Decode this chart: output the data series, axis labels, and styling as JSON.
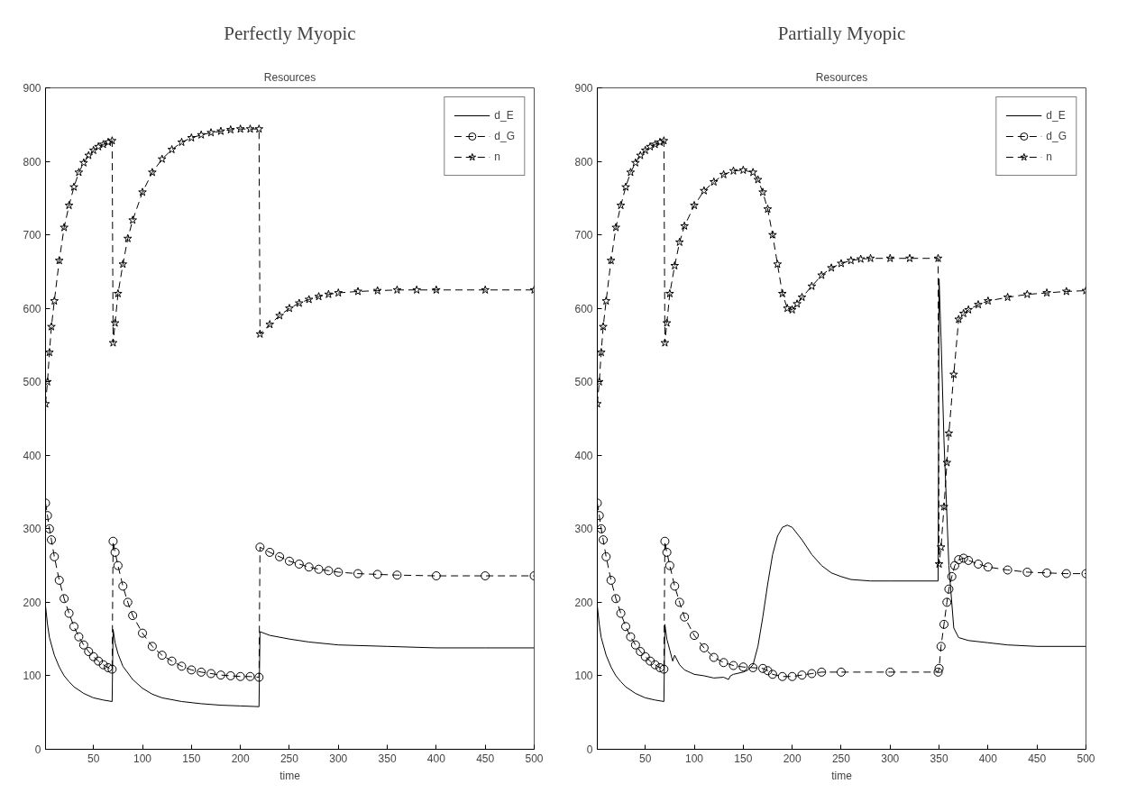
{
  "chart_data": [
    {
      "type": "line",
      "title": "Perfectly Myopic",
      "subtitle": "Resources",
      "xlabel": "time",
      "xlim": [
        1,
        500
      ],
      "xticks": [
        50,
        100,
        150,
        200,
        250,
        300,
        350,
        400,
        450,
        500
      ],
      "ylim": [
        0,
        900
      ],
      "yticks": [
        0,
        100,
        200,
        300,
        400,
        500,
        600,
        700,
        800,
        900
      ],
      "grid": false,
      "legend": "top right",
      "series": [
        {
          "name": "d_E",
          "color": "#000000",
          "marker": "none",
          "line_style": "solid",
          "x": [
            1,
            3,
            5,
            10,
            15,
            20,
            25,
            30,
            40,
            50,
            60,
            69,
            70,
            72,
            75,
            80,
            90,
            100,
            110,
            120,
            140,
            160,
            180,
            200,
            219,
            220,
            230,
            250,
            270,
            300,
            350,
            400,
            450,
            500
          ],
          "values": [
            195,
            170,
            152,
            128,
            112,
            100,
            92,
            85,
            76,
            70,
            67,
            65,
            163,
            145,
            130,
            113,
            95,
            83,
            75,
            70,
            65,
            62,
            60,
            59,
            58,
            160,
            155,
            150,
            146,
            142,
            140,
            138,
            138,
            138
          ]
        },
        {
          "name": "d_G",
          "color": "#000000",
          "marker": "circle",
          "line_style": "dashed",
          "x": [
            1,
            3,
            5,
            7,
            10,
            15,
            20,
            25,
            30,
            35,
            40,
            45,
            50,
            55,
            60,
            65,
            69,
            70,
            72,
            75,
            80,
            85,
            90,
            100,
            110,
            120,
            130,
            140,
            150,
            160,
            170,
            180,
            190,
            200,
            210,
            219,
            220,
            230,
            240,
            250,
            260,
            270,
            280,
            290,
            300,
            320,
            340,
            360,
            400,
            450,
            500
          ],
          "values": [
            335,
            318,
            300,
            285,
            262,
            230,
            205,
            185,
            167,
            153,
            142,
            133,
            126,
            120,
            115,
            111,
            109,
            283,
            268,
            250,
            222,
            200,
            182,
            158,
            140,
            128,
            120,
            113,
            108,
            105,
            103,
            101,
            100,
            99,
            99,
            98,
            275,
            268,
            262,
            256,
            252,
            248,
            245,
            243,
            241,
            239,
            238,
            237,
            236,
            236,
            236
          ]
        },
        {
          "name": "n",
          "color": "#000000",
          "marker": "star",
          "line_style": "dashed",
          "x": [
            1,
            3,
            5,
            7,
            10,
            15,
            20,
            25,
            30,
            35,
            40,
            45,
            50,
            55,
            60,
            65,
            69,
            70,
            72,
            75,
            80,
            85,
            90,
            100,
            110,
            120,
            130,
            140,
            150,
            160,
            170,
            180,
            190,
            200,
            210,
            219,
            220,
            230,
            240,
            250,
            260,
            270,
            280,
            290,
            300,
            320,
            340,
            360,
            380,
            400,
            450,
            500
          ],
          "values": [
            470,
            500,
            540,
            575,
            610,
            665,
            710,
            740,
            765,
            785,
            798,
            808,
            815,
            820,
            823,
            826,
            828,
            553,
            580,
            620,
            660,
            695,
            720,
            758,
            785,
            803,
            816,
            826,
            832,
            836,
            839,
            841,
            843,
            844,
            844,
            844,
            565,
            578,
            590,
            600,
            607,
            612,
            616,
            619,
            621,
            623,
            624,
            625,
            625,
            625,
            625,
            625
          ]
        }
      ]
    },
    {
      "type": "line",
      "title": "Partially Myopic",
      "subtitle": "Resources",
      "xlabel": "time",
      "xlim": [
        1,
        500
      ],
      "xticks": [
        50,
        100,
        150,
        200,
        250,
        300,
        350,
        400,
        450,
        500
      ],
      "ylim": [
        0,
        900
      ],
      "yticks": [
        0,
        100,
        200,
        300,
        400,
        500,
        600,
        700,
        800,
        900
      ],
      "grid": false,
      "legend": "top right",
      "series": [
        {
          "name": "d_E",
          "color": "#000000",
          "marker": "none",
          "line_style": "solid",
          "x": [
            1,
            3,
            5,
            10,
            15,
            20,
            25,
            30,
            40,
            50,
            60,
            69,
            70,
            72,
            75,
            78,
            80,
            85,
            90,
            100,
            110,
            120,
            130,
            135,
            137,
            140,
            150,
            155,
            160,
            165,
            170,
            175,
            180,
            185,
            190,
            195,
            200,
            210,
            220,
            230,
            240,
            250,
            260,
            280,
            300,
            349,
            350,
            352,
            355,
            360,
            365,
            370,
            380,
            400,
            420,
            450,
            500
          ],
          "values": [
            195,
            170,
            152,
            128,
            112,
            100,
            92,
            85,
            76,
            70,
            67,
            65,
            170,
            150,
            135,
            120,
            128,
            115,
            108,
            102,
            100,
            97,
            98,
            95,
            100,
            102,
            105,
            108,
            115,
            140,
            180,
            225,
            265,
            290,
            302,
            305,
            302,
            285,
            265,
            250,
            240,
            235,
            231,
            229,
            229,
            229,
            640,
            560,
            420,
            250,
            165,
            152,
            148,
            145,
            142,
            140,
            140
          ]
        },
        {
          "name": "d_G",
          "color": "#000000",
          "marker": "circle",
          "line_style": "dashed",
          "x": [
            1,
            3,
            5,
            7,
            10,
            15,
            20,
            25,
            30,
            35,
            40,
            45,
            50,
            55,
            60,
            65,
            69,
            70,
            72,
            75,
            80,
            85,
            90,
            100,
            110,
            120,
            130,
            140,
            150,
            160,
            170,
            175,
            180,
            190,
            200,
            210,
            220,
            230,
            250,
            300,
            349,
            350,
            352,
            355,
            358,
            360,
            363,
            366,
            370,
            375,
            380,
            390,
            400,
            420,
            440,
            460,
            480,
            500
          ],
          "values": [
            335,
            318,
            300,
            285,
            262,
            230,
            205,
            185,
            167,
            153,
            142,
            133,
            126,
            120,
            115,
            111,
            109,
            283,
            268,
            250,
            222,
            200,
            180,
            155,
            138,
            125,
            118,
            114,
            112,
            111,
            110,
            107,
            102,
            99,
            99,
            101,
            103,
            105,
            105,
            105,
            105,
            110,
            140,
            170,
            200,
            218,
            235,
            250,
            258,
            260,
            257,
            252,
            248,
            244,
            241,
            240,
            239,
            239
          ]
        },
        {
          "name": "n",
          "color": "#000000",
          "marker": "star",
          "line_style": "dashed",
          "x": [
            1,
            3,
            5,
            7,
            10,
            15,
            20,
            25,
            30,
            35,
            40,
            45,
            50,
            55,
            60,
            65,
            69,
            70,
            72,
            75,
            80,
            85,
            90,
            100,
            110,
            120,
            130,
            140,
            150,
            160,
            165,
            170,
            175,
            180,
            185,
            190,
            195,
            200,
            205,
            210,
            220,
            230,
            240,
            250,
            260,
            270,
            280,
            300,
            320,
            349,
            350,
            352,
            355,
            358,
            360,
            365,
            370,
            375,
            380,
            390,
            400,
            420,
            440,
            460,
            480,
            500
          ],
          "values": [
            470,
            500,
            540,
            575,
            610,
            665,
            710,
            740,
            765,
            785,
            798,
            808,
            815,
            820,
            823,
            826,
            828,
            553,
            580,
            620,
            658,
            690,
            712,
            740,
            760,
            772,
            782,
            787,
            788,
            785,
            775,
            758,
            735,
            700,
            660,
            620,
            600,
            598,
            606,
            615,
            630,
            645,
            655,
            661,
            665,
            667,
            668,
            668,
            668,
            668,
            252,
            275,
            330,
            390,
            430,
            510,
            585,
            593,
            598,
            605,
            610,
            615,
            619,
            621,
            623,
            624
          ]
        }
      ]
    }
  ]
}
